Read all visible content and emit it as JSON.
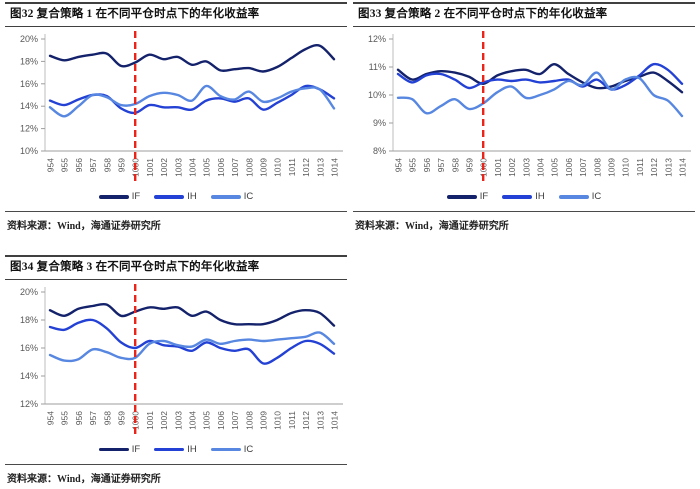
{
  "figures": [
    {
      "source": "资料来源：Wind，海通证券研究所"
    },
    {
      "source": "资料来源：Wind，海通证券研究所"
    },
    {
      "source": "资料来源：Wind，海通证券研究所"
    }
  ],
  "chart_data": [
    {
      "type": "line",
      "title": "图32 复合策略 1 在不同平仓时点下的年化收益率",
      "xlabel": "",
      "ylabel": "",
      "grid": false,
      "legend_position": "bottom",
      "categories": [
        "954",
        "955",
        "956",
        "957",
        "958",
        "959",
        "1000",
        "1001",
        "1002",
        "1003",
        "1004",
        "1005",
        "1006",
        "1007",
        "1008",
        "1009",
        "1010",
        "1011",
        "1012",
        "1013",
        "1014"
      ],
      "ylim": [
        10,
        20
      ],
      "yticks": [
        {
          "value": 10,
          "label": "10%"
        },
        {
          "value": 12,
          "label": "12%"
        },
        {
          "value": 14,
          "label": "14%"
        },
        {
          "value": 16,
          "label": "16%"
        },
        {
          "value": 18,
          "label": "18%"
        },
        {
          "value": 20,
          "label": "20%"
        }
      ],
      "vline": {
        "category": "1000",
        "color": "#ea2419",
        "style": "dashed"
      },
      "series": [
        {
          "name": "IF",
          "color": "#14226b",
          "values": [
            18.5,
            18.1,
            18.4,
            18.6,
            18.7,
            17.6,
            17.9,
            18.6,
            18.2,
            18.4,
            17.7,
            18.0,
            17.2,
            17.3,
            17.4,
            17.1,
            17.5,
            18.3,
            19.1,
            19.4,
            18.2
          ]
        },
        {
          "name": "IH",
          "color": "#2341d4",
          "values": [
            14.5,
            14.1,
            14.6,
            15.0,
            14.9,
            13.8,
            13.4,
            14.1,
            13.9,
            13.9,
            13.7,
            14.5,
            14.7,
            14.4,
            14.7,
            13.7,
            14.3,
            15.0,
            15.8,
            15.5,
            14.7
          ]
        },
        {
          "name": "IC",
          "color": "#5787e0",
          "values": [
            13.9,
            13.1,
            14.0,
            15.0,
            14.8,
            14.1,
            14.2,
            14.9,
            15.2,
            15.0,
            14.5,
            15.8,
            14.9,
            14.6,
            15.3,
            14.4,
            14.7,
            15.3,
            15.6,
            15.5,
            13.8
          ]
        }
      ]
    },
    {
      "type": "line",
      "title": "图33 复合策略 2 在不同平仓时点下的年化收益率",
      "xlabel": "",
      "ylabel": "",
      "grid": false,
      "legend_position": "bottom",
      "categories": [
        "954",
        "955",
        "956",
        "957",
        "958",
        "959",
        "1000",
        "1001",
        "1002",
        "1003",
        "1004",
        "1005",
        "1006",
        "1007",
        "1008",
        "1009",
        "1010",
        "1011",
        "1012",
        "1013",
        "1014"
      ],
      "ylim": [
        8,
        12
      ],
      "yticks": [
        {
          "value": 8,
          "label": "8%"
        },
        {
          "value": 9,
          "label": "9%"
        },
        {
          "value": 10,
          "label": "10%"
        },
        {
          "value": 11,
          "label": "11%"
        },
        {
          "value": 12,
          "label": "12%"
        }
      ],
      "vline": {
        "category": "1000",
        "color": "#ea2419",
        "style": "dashed"
      },
      "series": [
        {
          "name": "IF",
          "color": "#14226b",
          "values": [
            10.9,
            10.55,
            10.75,
            10.85,
            10.8,
            10.65,
            10.4,
            10.7,
            10.85,
            10.9,
            10.75,
            11.1,
            10.75,
            10.45,
            10.25,
            10.3,
            10.5,
            10.65,
            10.8,
            10.5,
            10.1
          ]
        },
        {
          "name": "IH",
          "color": "#2341d4",
          "values": [
            10.75,
            10.45,
            10.7,
            10.75,
            10.55,
            10.25,
            10.45,
            10.55,
            10.5,
            10.55,
            10.45,
            10.5,
            10.55,
            10.3,
            10.55,
            10.2,
            10.35,
            10.7,
            11.1,
            10.9,
            10.4
          ]
        },
        {
          "name": "IC",
          "color": "#5787e0",
          "values": [
            9.9,
            9.85,
            9.35,
            9.6,
            9.85,
            9.5,
            9.7,
            10.1,
            10.3,
            9.9,
            10.0,
            10.2,
            10.5,
            10.35,
            10.8,
            10.2,
            10.55,
            10.6,
            10.0,
            9.8,
            9.25
          ]
        }
      ]
    },
    {
      "type": "line",
      "title": "图34 复合策略 3 在不同平仓时点下的年化收益率",
      "xlabel": "",
      "ylabel": "",
      "grid": false,
      "legend_position": "bottom",
      "categories": [
        "954",
        "955",
        "956",
        "957",
        "958",
        "959",
        "1000",
        "1001",
        "1002",
        "1003",
        "1004",
        "1005",
        "1006",
        "1007",
        "1008",
        "1009",
        "1010",
        "1011",
        "1012",
        "1013",
        "1014"
      ],
      "ylim": [
        12,
        20
      ],
      "yticks": [
        {
          "value": 12,
          "label": "12%"
        },
        {
          "value": 14,
          "label": "14%"
        },
        {
          "value": 16,
          "label": "16%"
        },
        {
          "value": 18,
          "label": "18%"
        },
        {
          "value": 20,
          "label": "20%"
        }
      ],
      "vline": {
        "category": "1000",
        "color": "#ea2419",
        "style": "dashed"
      },
      "series": [
        {
          "name": "IF",
          "color": "#14226b",
          "values": [
            18.7,
            18.3,
            18.8,
            19.0,
            19.1,
            18.3,
            18.6,
            18.9,
            18.8,
            18.9,
            18.3,
            18.6,
            18.0,
            17.7,
            17.7,
            17.7,
            18.0,
            18.5,
            18.7,
            18.5,
            17.6
          ]
        },
        {
          "name": "IH",
          "color": "#2341d4",
          "values": [
            17.5,
            17.3,
            17.8,
            18.0,
            17.4,
            16.4,
            16.0,
            16.5,
            16.2,
            16.1,
            15.8,
            16.4,
            16.0,
            15.8,
            15.9,
            14.9,
            15.3,
            16.0,
            16.5,
            16.3,
            15.6
          ]
        },
        {
          "name": "IC",
          "color": "#5787e0",
          "values": [
            15.5,
            15.1,
            15.2,
            15.9,
            15.7,
            15.3,
            15.3,
            16.3,
            16.5,
            16.2,
            16.1,
            16.6,
            16.3,
            16.5,
            16.6,
            16.5,
            16.6,
            16.7,
            16.8,
            17.1,
            16.3
          ]
        }
      ]
    }
  ]
}
